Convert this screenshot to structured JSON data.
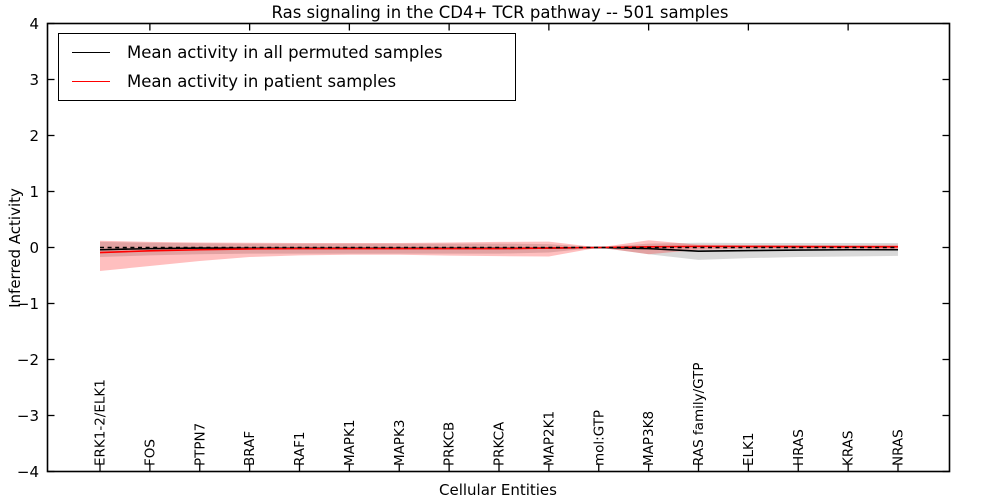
{
  "chart_data": {
    "type": "line",
    "title": "Ras signaling in the CD4+ TCR pathway -- 501 samples",
    "xlabel": "Cellular Entities",
    "ylabel": "Inferred Activity",
    "ylim": [
      -4,
      4
    ],
    "yticks": [
      4,
      3,
      2,
      1,
      0,
      -1,
      -2,
      -3,
      -4
    ],
    "ytick_labels": [
      "4",
      "3",
      "2",
      "1",
      "0",
      "−1",
      "−2",
      "−3",
      "−4"
    ],
    "grid": false,
    "legend_position": "upper left",
    "zero_line": {
      "style": "dashed",
      "color": "#000000",
      "y": 0
    },
    "categories": [
      "ERK1-2/ELK1",
      "FOS",
      "PTPN7",
      "BRAF",
      "RAF1",
      "MAPK1",
      "MAPK3",
      "PRKCB",
      "PRKCA",
      "MAP2K1",
      "mol:GTP",
      "MAP3K8",
      "RAS family/GTP",
      "ELK1",
      "HRAS",
      "KRAS",
      "NRAS"
    ],
    "series": [
      {
        "name": "Mean activity in all permuted samples",
        "color": "#000000",
        "band_color": "#8a8a8a",
        "band_opacity": 0.32,
        "values": [
          -0.04,
          -0.02,
          -0.01,
          -0.015,
          -0.015,
          -0.015,
          -0.015,
          -0.015,
          -0.015,
          -0.01,
          0,
          -0.02,
          -0.065,
          -0.055,
          -0.045,
          -0.04,
          -0.04
        ],
        "band_upper": [
          0.1,
          0.085,
          0.075,
          0.07,
          0.07,
          0.07,
          0.07,
          0.07,
          0.07,
          0.06,
          0,
          0.07,
          0.085,
          0.08,
          0.08,
          0.08,
          0.08
        ],
        "band_lower": [
          -0.17,
          -0.14,
          -0.12,
          -0.11,
          -0.11,
          -0.11,
          -0.11,
          -0.11,
          -0.11,
          -0.09,
          0,
          -0.12,
          -0.22,
          -0.19,
          -0.17,
          -0.16,
          -0.15
        ]
      },
      {
        "name": "Mean activity in patient samples",
        "color": "#ff0000",
        "band_color": "#ff0000",
        "band_opacity": 0.25,
        "values": [
          -0.09,
          -0.06,
          -0.04,
          -0.025,
          -0.02,
          -0.02,
          -0.02,
          -0.02,
          -0.02,
          -0.01,
          0,
          0.012,
          0.02,
          0.018,
          0.015,
          0.012,
          0.012
        ],
        "band_upper": [
          0.12,
          0.1,
          0.09,
          0.085,
          0.08,
          0.08,
          0.08,
          0.09,
          0.1,
          0.105,
          0,
          0.13,
          0.05,
          0.045,
          0.045,
          0.045,
          0.05
        ],
        "band_lower": [
          -0.42,
          -0.33,
          -0.24,
          -0.17,
          -0.14,
          -0.13,
          -0.13,
          -0.145,
          -0.155,
          -0.16,
          0,
          -0.12,
          -0.04,
          -0.02,
          -0.02,
          -0.02,
          -0.03
        ]
      }
    ]
  }
}
